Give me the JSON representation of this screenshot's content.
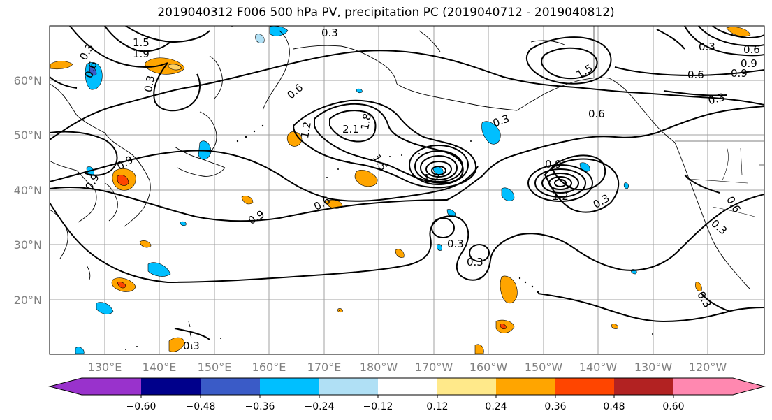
{
  "title": "2019040312 F006 500 hPa PV, precipitation PC (2019040712 - 2019040812)",
  "lat_labels": [
    "60°N",
    "50°N",
    "40°N",
    "30°N",
    "20°N"
  ],
  "lon_labels": [
    "130°E",
    "140°E",
    "150°E",
    "160°E",
    "170°E",
    "180°W",
    "170°W",
    "160°W",
    "150°W",
    "140°W",
    "130°W",
    "120°W"
  ],
  "contour_labels": [
    "0.3",
    "1.5",
    "1.9",
    "0.6",
    "0.3",
    "0.6",
    "2.1",
    "1.8",
    "1.2",
    "1.5",
    "0.9",
    "0.6",
    "0.9",
    "0.3",
    "0.3",
    "0.3",
    "0.6",
    "0.9",
    "1.2",
    "0.3",
    "0.6",
    "0.3",
    "0.9",
    "0.3",
    "1.5",
    "0.6",
    "0.9",
    "0.3",
    "1.2",
    "0.9",
    "0.3",
    "0.3",
    "0.3",
    "0.6"
  ],
  "colorbar": {
    "ticks": [
      "−0.60",
      "−0.48",
      "−0.36",
      "−0.24",
      "−0.12",
      "0.12",
      "0.24",
      "0.36",
      "0.48",
      "0.60"
    ],
    "colors": [
      "#9932cc",
      "#00008b",
      "#3a5bc7",
      "#00bfff",
      "#b0e0f5",
      "#ffffff",
      "#ffe98a",
      "#ffa500",
      "#ff4500",
      "#b22222",
      "#ff88b0"
    ]
  }
}
